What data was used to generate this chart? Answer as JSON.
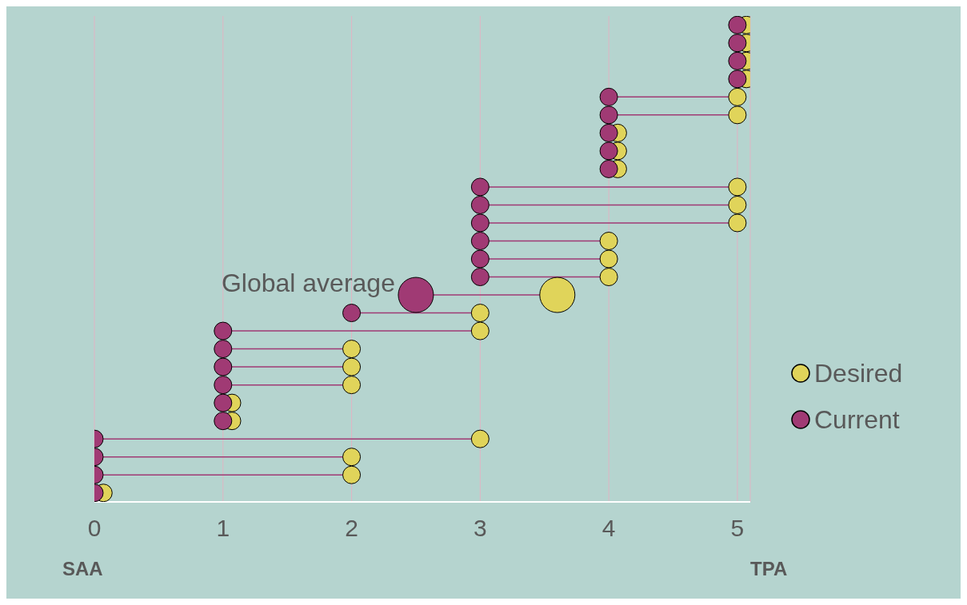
{
  "chart_data": {
    "type": "bubble",
    "orientation": "horizontal",
    "categories": [
      null,
      null,
      null,
      null,
      null,
      null,
      null,
      null,
      null,
      null,
      null,
      null,
      null,
      null,
      null,
      null,
      null,
      null,
      null,
      null,
      null,
      null,
      null,
      null,
      null,
      null,
      null
    ],
    "series": [
      {
        "name": "Desired",
        "color": "#e0d45a",
        "values": [
          5.07,
          5.07,
          5.07,
          5.07,
          5,
          5,
          4.07,
          4.07,
          4.07,
          5,
          5,
          5,
          4,
          4,
          4,
          3.6,
          3,
          3,
          2,
          2,
          2,
          1.07,
          1.07,
          3,
          2,
          2,
          0.07
        ],
        "sizes": [
          0.25,
          0.25,
          0.25,
          0.25,
          0.25,
          0.25,
          0.25,
          0.25,
          0.25,
          0.25,
          0.25,
          0.25,
          0.25,
          0.25,
          0.25,
          1,
          0.25,
          0.25,
          0.25,
          0.25,
          0.25,
          0.25,
          0.25,
          0.25,
          0.25,
          0.25,
          0.25
        ]
      },
      {
        "name": "Current",
        "color": "#a03a74",
        "values": [
          5,
          5,
          5,
          5,
          4,
          4,
          4,
          4,
          4,
          3,
          3,
          3,
          3,
          3,
          3,
          2.5,
          2,
          1,
          1,
          1,
          1,
          1,
          1,
          0,
          0,
          0,
          0
        ],
        "sizes": [
          0.25,
          0.25,
          0.25,
          0.25,
          0.25,
          0.25,
          0.25,
          0.25,
          0.25,
          0.25,
          0.25,
          0.25,
          0.25,
          0.25,
          0.25,
          1,
          0.25,
          0.25,
          0.25,
          0.25,
          0.25,
          0.25,
          0.25,
          0.25,
          0.25,
          0.25,
          0.25
        ]
      }
    ],
    "xlim": [
      0,
      5.1
    ],
    "xticks": [
      0,
      1,
      2,
      3,
      4,
      5
    ],
    "grid": "x",
    "legend": "right",
    "marker": "circle",
    "annotations": [
      "SAA",
      "TPA",
      "Global average"
    ]
  }
}
